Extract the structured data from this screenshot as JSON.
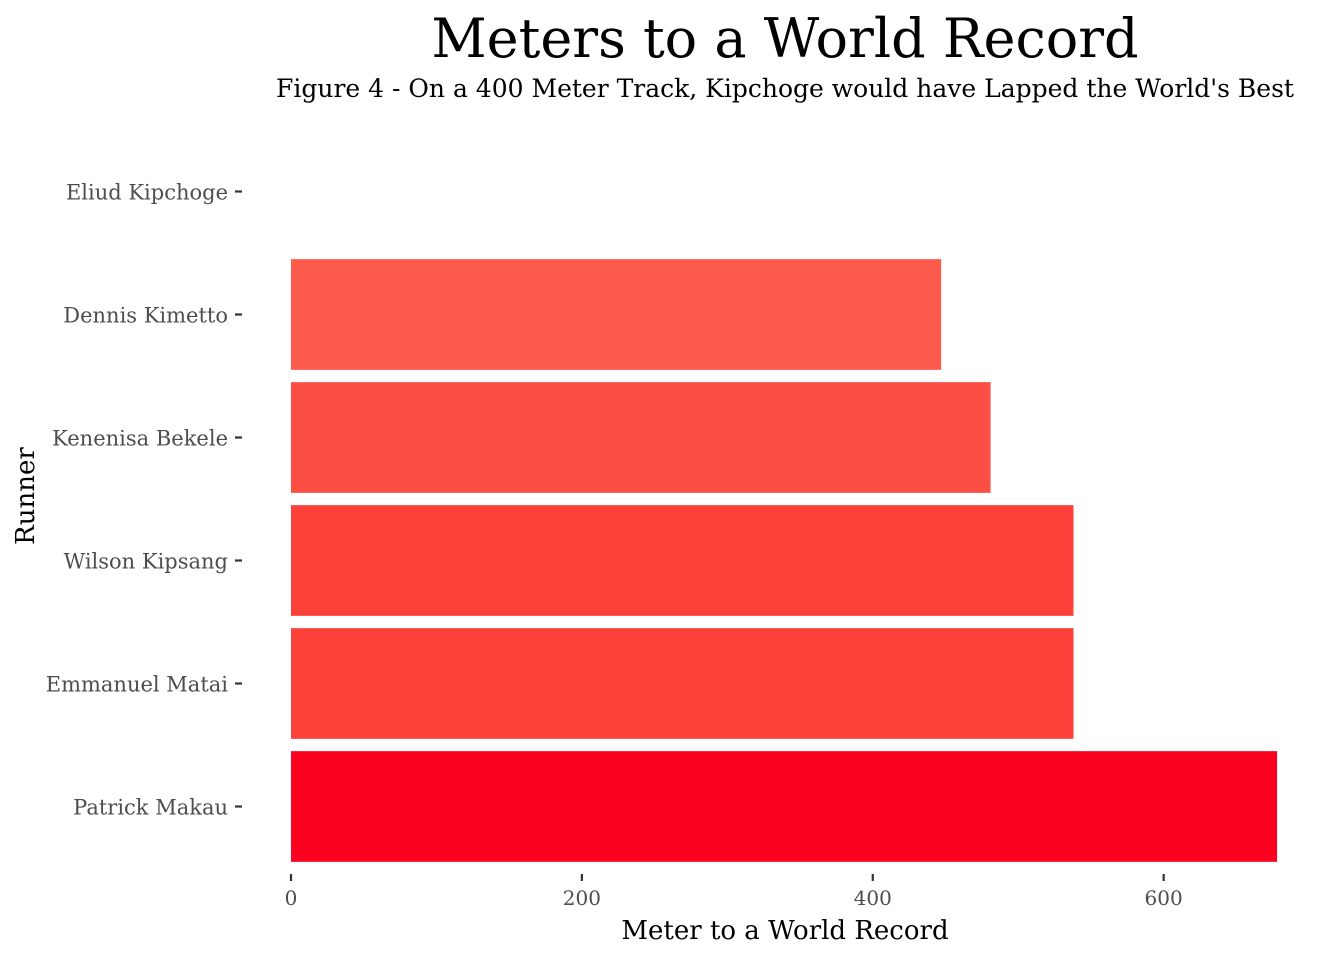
{
  "chart_data": {
    "type": "bar",
    "orientation": "horizontal",
    "title": "Meters to a World Record",
    "subtitle": "Figure 4 - On a 400 Meter Track, Kipchoge would have Lapped the World's Best",
    "xlabel": "Meter to a World Record",
    "ylabel": "Runner",
    "categories": [
      "Eliud Kipchoge",
      "Dennis Kimetto",
      "Kenenisa Bekele",
      "Wilson Kipsang",
      "Emmanuel Matai",
      "Patrick Makau"
    ],
    "values": [
      0,
      447,
      481,
      538,
      538,
      678
    ],
    "colors": [
      "#fb5a4d",
      "#fb5a4d",
      "#fb4e44",
      "#fc413b",
      "#fc413b",
      "#fa0220"
    ],
    "xlim": [
      0,
      680
    ],
    "xticks": [
      0,
      200,
      400,
      600
    ],
    "grid": false,
    "legend": "none"
  }
}
